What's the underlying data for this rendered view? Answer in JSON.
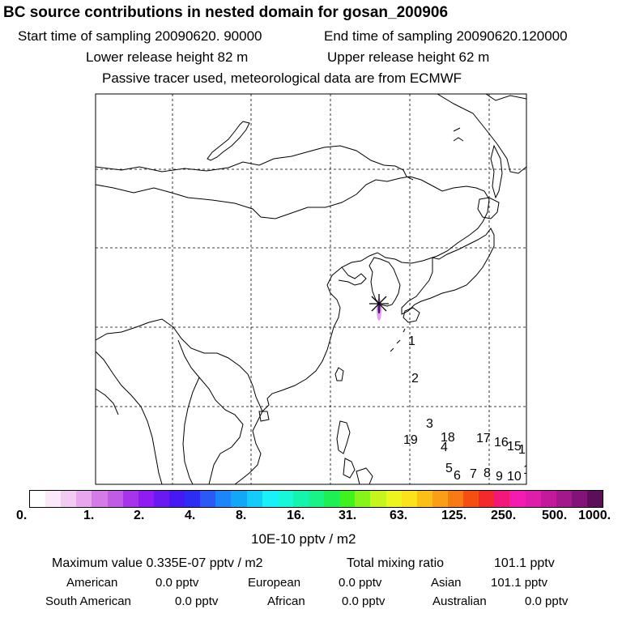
{
  "header": {
    "title": "BC  source contributions in nested domain for gosan_200906",
    "start_label": "Start time of sampling 20090620. 90000",
    "end_label": "End time of sampling 20090620.120000",
    "lower_release": "Lower release height   82 m",
    "upper_release": "Upper release height   62 m",
    "tracer_note": "Passive tracer used, meteorological data are from ECMWF"
  },
  "map": {
    "marker": "receptor-star",
    "track_labels": [
      "1",
      "2",
      "3",
      "18",
      "19",
      "4",
      "17",
      "16",
      "15",
      "1",
      "5",
      "6",
      "7",
      "8",
      "9",
      "10",
      "1"
    ]
  },
  "colorbar": {
    "ticks": [
      "0.",
      "1.",
      "2.",
      "4.",
      "8.",
      "16.",
      "31.",
      "63.",
      "125.",
      "250.",
      "500.",
      "1000."
    ],
    "units": "10E-10 pptv / m2",
    "colors": [
      "#ffffff",
      "#fbe9fb",
      "#f3caf4",
      "#e8a6ee",
      "#d57be8",
      "#c05be6",
      "#a733ea",
      "#8f1df3",
      "#6a19f3",
      "#4619f4",
      "#2b2cf4",
      "#2a5af6",
      "#1a86f7",
      "#12a8f7",
      "#13cdf8",
      "#19f0f7",
      "#18f7d7",
      "#15f4ad",
      "#19f286",
      "#1eef55",
      "#3ff21c",
      "#86f31a",
      "#c5f51c",
      "#eef41d",
      "#fbe21b",
      "#fbc018",
      "#f99e16",
      "#f77a14",
      "#f54e12",
      "#f4292d",
      "#f4177a",
      "#f31bb0",
      "#de1ea8",
      "#c21a9b",
      "#a3188a",
      "#821477",
      "#5b0f58"
    ]
  },
  "footer": {
    "max_label": "Maximum value  0.335E-07 pptv / m2",
    "total_label": "Total mixing ratio",
    "total_value": "101.1 pptv",
    "american_label": "American",
    "american_value": "0.0 pptv",
    "european_label": "European",
    "european_value": "0.0 pptv",
    "asian_label": "Asian",
    "asian_value": "101.1 pptv",
    "samerican_label": "South American",
    "samerican_value": "0.0 pptv",
    "african_label": "African",
    "african_value": "0.0 pptv",
    "australian_label": "Australian",
    "australian_value": "0.0 pptv"
  }
}
